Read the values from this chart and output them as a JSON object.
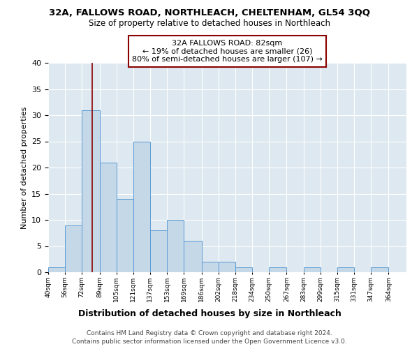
{
  "title1": "32A, FALLOWS ROAD, NORTHLEACH, CHELTENHAM, GL54 3QQ",
  "title2": "Size of property relative to detached houses in Northleach",
  "xlabel": "Distribution of detached houses by size in Northleach",
  "ylabel": "Number of detached properties",
  "bar_left_edges": [
    40,
    56,
    72,
    89,
    105,
    121,
    137,
    153,
    169,
    186,
    202,
    218,
    234,
    250,
    267,
    283,
    299,
    315,
    331,
    347
  ],
  "bar_widths": [
    16,
    16,
    17,
    16,
    16,
    16,
    16,
    16,
    17,
    16,
    16,
    16,
    16,
    17,
    16,
    16,
    16,
    16,
    16,
    17
  ],
  "bar_heights": [
    1,
    9,
    31,
    21,
    14,
    25,
    8,
    10,
    6,
    2,
    2,
    1,
    0,
    1,
    0,
    1,
    0,
    1,
    0,
    1
  ],
  "bar_color": "#c5d8e8",
  "bar_edge_color": "#5b9bd5",
  "property_line_x": 82,
  "property_line_color": "#8b0000",
  "annotation_text": "32A FALLOWS ROAD: 82sqm\n← 19% of detached houses are smaller (26)\n80% of semi-detached houses are larger (107) →",
  "annotation_box_color": "#8b0000",
  "annotation_box_facecolor": "white",
  "tick_labels": [
    "40sqm",
    "56sqm",
    "72sqm",
    "89sqm",
    "105sqm",
    "121sqm",
    "137sqm",
    "153sqm",
    "169sqm",
    "186sqm",
    "202sqm",
    "218sqm",
    "234sqm",
    "250sqm",
    "267sqm",
    "283sqm",
    "299sqm",
    "315sqm",
    "331sqm",
    "347sqm",
    "364sqm"
  ],
  "ylim": [
    0,
    40
  ],
  "xlim": [
    40,
    381
  ],
  "plot_bg_color": "#dde8f0",
  "footer1": "Contains HM Land Registry data © Crown copyright and database right 2024.",
  "footer2": "Contains public sector information licensed under the Open Government Licence v3.0."
}
